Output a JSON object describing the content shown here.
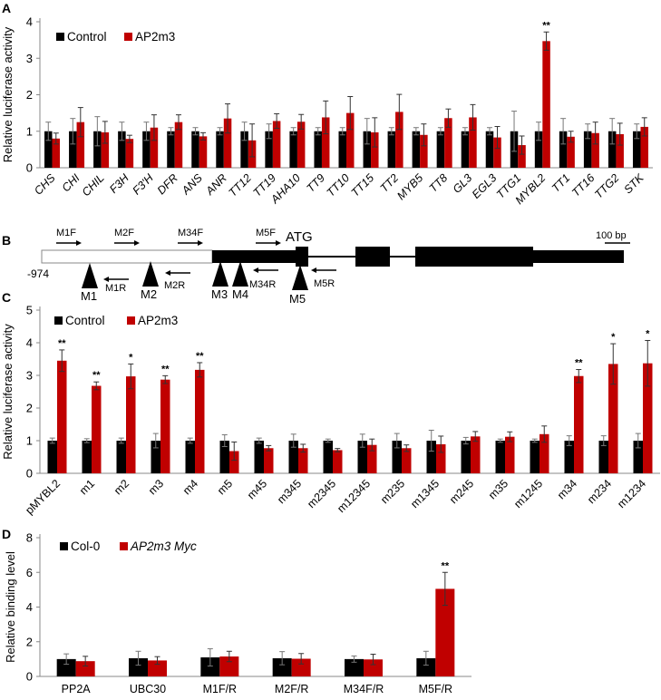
{
  "colors": {
    "control": "#000000",
    "treatment": "#c00000",
    "axis": "#888888"
  },
  "chart_data": [
    {
      "panel": "A",
      "type": "bar",
      "ylabel": "Relative luciferase activity",
      "ylim": [
        0,
        4
      ],
      "yticks": [
        "0",
        "1",
        "2",
        "3",
        "4"
      ],
      "categories": [
        "CHS",
        "CHI",
        "CHIL",
        "F3H",
        "F3'H",
        "DFR",
        "ANS",
        "ANR",
        "TT12",
        "TT19",
        "AHA10",
        "TT9",
        "TT10",
        "TT15",
        "TT2",
        "MYB5",
        "TT8",
        "GL3",
        "EGL3",
        "TTG1",
        "MYBL2",
        "TT1",
        "TT16",
        "TTG2",
        "STK"
      ],
      "italic_labels": true,
      "legend": [
        "Control",
        "AP2m3"
      ],
      "series": [
        {
          "name": "Control",
          "values": [
            1,
            1,
            1,
            1,
            1,
            1,
            1,
            1,
            1,
            1,
            1,
            1,
            1,
            1,
            1,
            1,
            1,
            1,
            1,
            1,
            1,
            1,
            1,
            1,
            1
          ],
          "errors": [
            0.25,
            0.35,
            0.4,
            0.25,
            0.25,
            0.1,
            0.1,
            0.1,
            0.25,
            0.2,
            0.1,
            0.1,
            0.1,
            0.35,
            0.1,
            0.1,
            0.1,
            0.1,
            0.1,
            0.55,
            0.25,
            0.35,
            0.2,
            0.35,
            0.2
          ]
        },
        {
          "name": "AP2m3",
          "values": [
            0.8,
            1.25,
            0.97,
            0.79,
            1.1,
            1.25,
            0.86,
            1.35,
            0.75,
            1.28,
            1.26,
            1.38,
            1.5,
            0.97,
            1.53,
            0.9,
            1.36,
            1.38,
            0.83,
            0.62,
            3.47,
            0.85,
            0.95,
            0.92,
            1.12
          ],
          "errors": [
            0.15,
            0.4,
            0.3,
            0.1,
            0.35,
            0.2,
            0.1,
            0.4,
            0.45,
            0.2,
            0.2,
            0.45,
            0.45,
            0.4,
            0.48,
            0.3,
            0.25,
            0.35,
            0.3,
            0.25,
            0.25,
            0.15,
            0.3,
            0.3,
            0.25
          ]
        }
      ],
      "annotations": [
        {
          "category": "MYBL2",
          "text": "**"
        }
      ]
    },
    {
      "panel": "B",
      "type": "diagram",
      "start_label": "-974",
      "atg_label": "ATG",
      "scale_label": "100 bp",
      "primers_forward": [
        "M1F",
        "M2F",
        "M34F",
        "M5F"
      ],
      "primers_reverse": [
        "M1R",
        "M2R",
        "M34R",
        "M5R"
      ],
      "motifs": [
        "M1",
        "M2",
        "M3",
        "M4",
        "M5"
      ]
    },
    {
      "panel": "C",
      "type": "bar",
      "ylabel": "Relative luciferase activity",
      "ylim": [
        0,
        5
      ],
      "yticks": [
        "0",
        "1",
        "2",
        "3",
        "4",
        "5"
      ],
      "categories": [
        "pMYBL2",
        "m1",
        "m2",
        "m3",
        "m4",
        "m5",
        "m45",
        "m345",
        "m2345",
        "m12345",
        "m235",
        "m1345",
        "m245",
        "m35",
        "m1245",
        "m34",
        "m234",
        "m1234"
      ],
      "legend": [
        "Control",
        "AP2m3"
      ],
      "series": [
        {
          "name": "Control",
          "values": [
            1,
            1,
            1,
            1,
            1,
            1,
            1,
            1,
            1,
            1,
            1,
            1,
            1,
            1,
            1,
            1,
            1,
            1
          ],
          "errors": [
            0.08,
            0.06,
            0.08,
            0.22,
            0.08,
            0.18,
            0.08,
            0.2,
            0.05,
            0.2,
            0.22,
            0.32,
            0.1,
            0.05,
            0.05,
            0.15,
            0.15,
            0.22
          ]
        },
        {
          "name": "AP2m3",
          "values": [
            3.45,
            2.68,
            2.97,
            2.87,
            3.17,
            0.68,
            0.77,
            0.77,
            0.71,
            0.87,
            0.77,
            0.89,
            1.13,
            1.12,
            1.2,
            2.98,
            3.35,
            3.37
          ],
          "errors": [
            0.33,
            0.12,
            0.38,
            0.12,
            0.22,
            0.28,
            0.08,
            0.12,
            0.05,
            0.18,
            0.1,
            0.25,
            0.15,
            0.15,
            0.25,
            0.2,
            0.62,
            0.7
          ]
        }
      ],
      "annotations": [
        {
          "category": "pMYBL2",
          "text": "**"
        },
        {
          "category": "m1",
          "text": "**"
        },
        {
          "category": "m2",
          "text": "*"
        },
        {
          "category": "m3",
          "text": "**"
        },
        {
          "category": "m4",
          "text": "**"
        },
        {
          "category": "m34",
          "text": "**"
        },
        {
          "category": "m234",
          "text": "*"
        },
        {
          "category": "m1234",
          "text": "*"
        }
      ]
    },
    {
      "panel": "D",
      "type": "bar",
      "ylabel": "Relative binding level",
      "ylim": [
        0,
        8
      ],
      "yticks": [
        "0",
        "2",
        "4",
        "6",
        "8"
      ],
      "categories": [
        "PP2A",
        "UBC30",
        "M1F/R",
        "M2F/R",
        "M34F/R",
        "M5F/R"
      ],
      "legend": [
        "Col-0",
        "AP2m3 Myc"
      ],
      "series": [
        {
          "name": "Col-0",
          "values": [
            1,
            1.05,
            1.1,
            1.05,
            1.0,
            1.05
          ],
          "errors": [
            0.3,
            0.4,
            0.5,
            0.38,
            0.18,
            0.4
          ]
        },
        {
          "name": "AP2m3 Myc",
          "values": [
            0.88,
            0.92,
            1.15,
            1.02,
            0.98,
            5.05
          ],
          "errors": [
            0.28,
            0.22,
            0.3,
            0.3,
            0.3,
            0.95
          ]
        }
      ],
      "annotations": [
        {
          "category": "M5F/R",
          "text": "**"
        }
      ]
    }
  ]
}
